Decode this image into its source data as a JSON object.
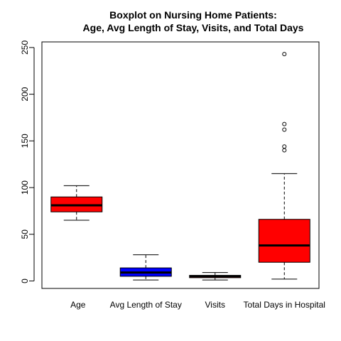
{
  "chart_data": {
    "type": "boxplot",
    "title_lines": [
      "Boxplot on Nursing Home Patients:",
      "Age, Avg Length of Stay, Visits, and Total Days"
    ],
    "xlabel": "",
    "ylabel": "",
    "ylim": [
      -8,
      256
    ],
    "yticks": [
      0,
      50,
      100,
      150,
      200,
      250
    ],
    "grid": false,
    "legend": "none",
    "categories": [
      "Age",
      "Avg Length of Stay",
      "Visits",
      "Total Days in Hospital"
    ],
    "boxes": [
      {
        "category": "Age",
        "color": "#ff0000",
        "whisker_low": 65,
        "q1": 74,
        "median": 81,
        "q3": 90,
        "whisker_high": 102,
        "outliers": []
      },
      {
        "category": "Avg Length of Stay",
        "color": "#0000ff",
        "whisker_low": 1,
        "q1": 5,
        "median": 9,
        "q3": 14,
        "whisker_high": 28,
        "outliers": []
      },
      {
        "category": "Visits",
        "color": "#ff0000",
        "whisker_low": 1,
        "q1": 3.5,
        "median": 5,
        "q3": 6,
        "whisker_high": 9,
        "outliers": []
      },
      {
        "category": "Total Days in Hospital",
        "color": "#ff0000",
        "whisker_low": 2,
        "q1": 20,
        "median": 38,
        "q3": 66,
        "whisker_high": 115,
        "outliers": [
          140,
          144,
          162,
          168,
          243
        ]
      }
    ]
  }
}
